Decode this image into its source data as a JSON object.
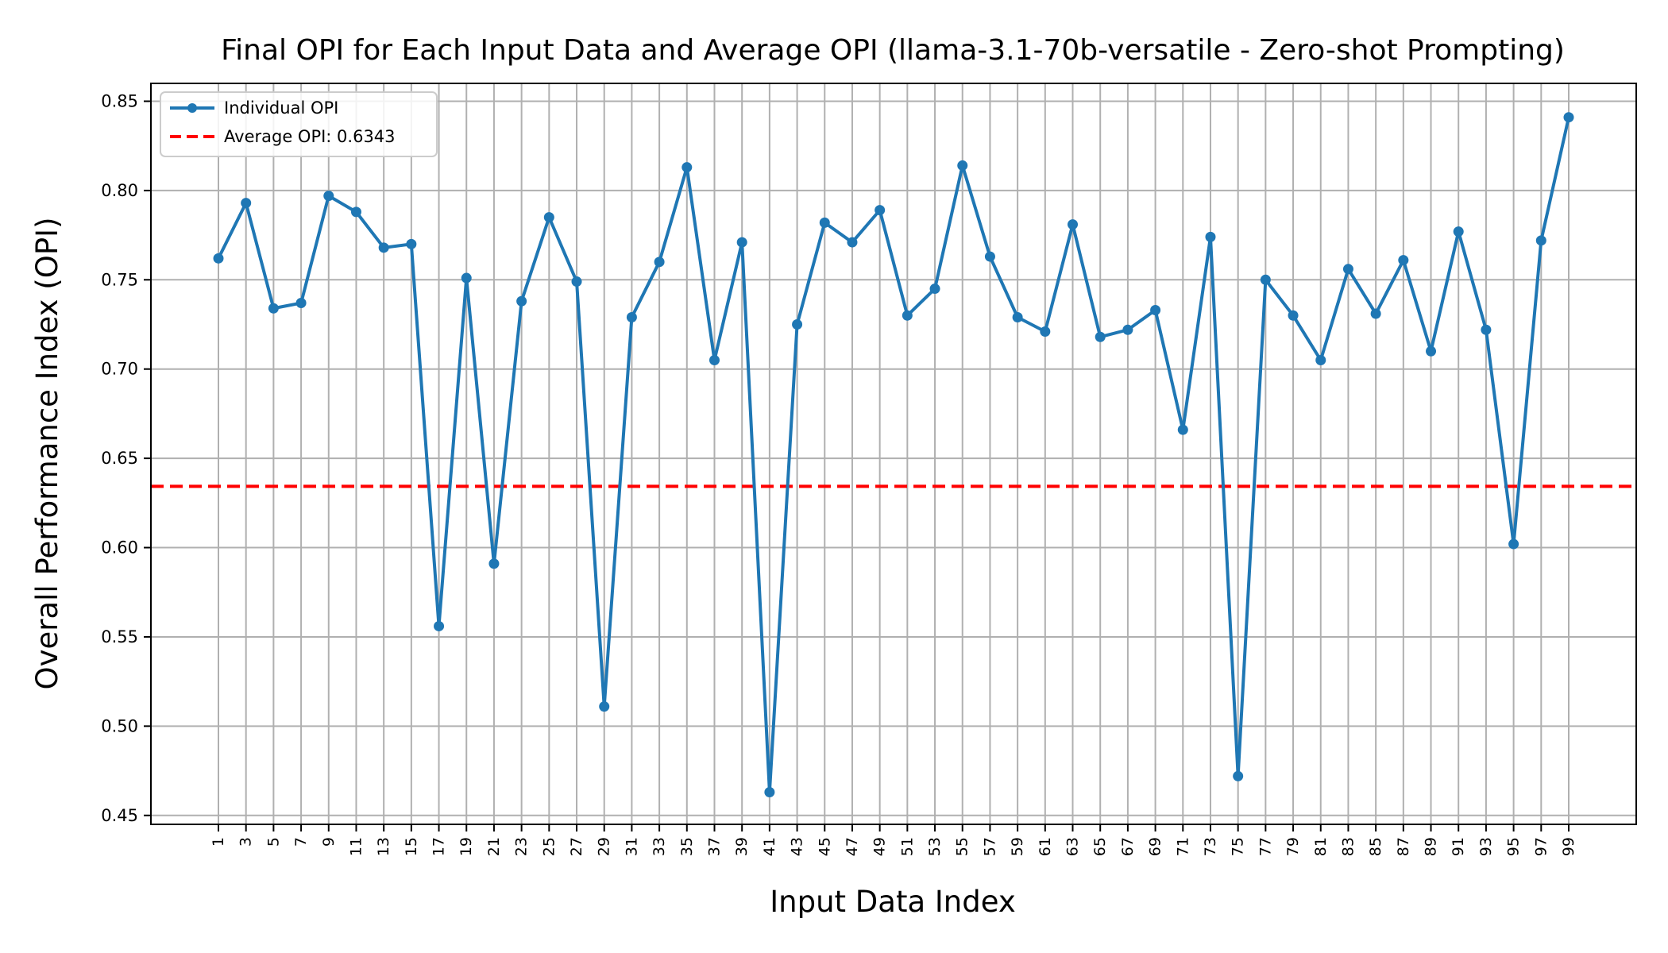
{
  "chart_data": {
    "type": "line",
    "title": "Final OPI for Each Input Data and Average OPI (llama-3.1-70b-versatile - Zero-shot Prompting)",
    "xlabel": "Input Data Index",
    "ylabel": "Overall Performance Index (OPI)",
    "ylim": [
      0.445,
      0.86
    ],
    "xlim": [
      -3.9,
      103.9
    ],
    "yticks": [
      0.45,
      0.5,
      0.55,
      0.6,
      0.65,
      0.7,
      0.75,
      0.8,
      0.85
    ],
    "ytick_labels": [
      "0.45",
      "0.50",
      "0.55",
      "0.60",
      "0.65",
      "0.70",
      "0.75",
      "0.80",
      "0.85"
    ],
    "xticks": [
      1,
      3,
      5,
      7,
      9,
      11,
      13,
      15,
      17,
      19,
      21,
      23,
      25,
      27,
      29,
      31,
      33,
      35,
      37,
      39,
      41,
      43,
      45,
      47,
      49,
      51,
      53,
      55,
      57,
      59,
      61,
      63,
      65,
      67,
      69,
      71,
      73,
      75,
      77,
      79,
      81,
      83,
      85,
      87,
      89,
      91,
      93,
      95,
      97,
      99
    ],
    "xtick_labels": [
      "1",
      "3",
      "5",
      "7",
      "9",
      "11",
      "13",
      "15",
      "17",
      "19",
      "21",
      "23",
      "25",
      "27",
      "29",
      "31",
      "33",
      "35",
      "37",
      "39",
      "41",
      "43",
      "45",
      "47",
      "49",
      "51",
      "53",
      "55",
      "57",
      "59",
      "61",
      "63",
      "65",
      "67",
      "69",
      "71",
      "73",
      "75",
      "77",
      "79",
      "81",
      "83",
      "85",
      "87",
      "89",
      "91",
      "93",
      "95",
      "97",
      "99"
    ],
    "grid": true,
    "legend_position": "top-left",
    "series": [
      {
        "name": "Individual OPI",
        "color": "#1f77b4",
        "marker": "circle",
        "x": [
          1,
          3,
          5,
          7,
          9,
          11,
          13,
          15,
          17,
          19,
          21,
          23,
          25,
          27,
          29,
          31,
          33,
          35,
          37,
          39,
          41,
          43,
          45,
          47,
          49,
          51,
          53,
          55,
          57,
          59,
          61,
          63,
          65,
          67,
          69,
          71,
          73,
          75,
          77,
          79,
          81,
          83,
          85,
          87,
          89,
          91,
          93,
          95,
          97,
          99
        ],
        "values": [
          0.762,
          0.793,
          0.734,
          0.737,
          0.797,
          0.788,
          0.768,
          0.77,
          0.556,
          0.751,
          0.591,
          0.738,
          0.785,
          0.749,
          0.511,
          0.729,
          0.76,
          0.813,
          0.705,
          0.771,
          0.463,
          0.725,
          0.782,
          0.771,
          0.789,
          0.73,
          0.745,
          0.814,
          0.763,
          0.729,
          0.721,
          0.781,
          0.718,
          0.722,
          0.733,
          0.666,
          0.774,
          0.472,
          0.75,
          0.73,
          0.705,
          0.756,
          0.731,
          0.761,
          0.71,
          0.777,
          0.722,
          0.602,
          0.772,
          0.841
        ]
      }
    ],
    "reference_lines": [
      {
        "name": "Average OPI: 0.6343",
        "value": 0.6343,
        "color": "#ff0000",
        "style": "dashed"
      }
    ]
  }
}
